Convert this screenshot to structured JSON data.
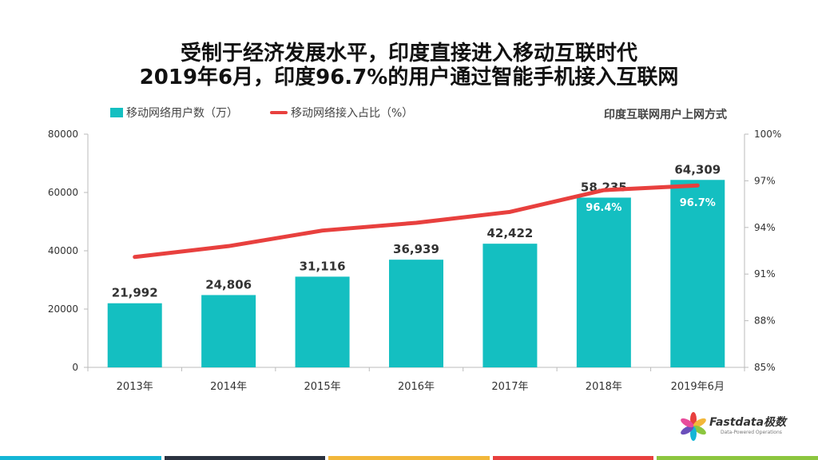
{
  "title_line1": "受制于经济发展水平，印度直接进入移动互联时代",
  "title_line2": "2019年6月，印度96.7%的用户通过智能手机接入互联网",
  "subtitle": "印度互联网用户上网方式",
  "legend": {
    "bar_label": "移动网络用户数（万）",
    "line_label": "移动网络接入占比（%）"
  },
  "logo": {
    "name": "Fastdata极数",
    "tagline": "Data-Powered Operations"
  },
  "colors": {
    "bar": "#14bfc1",
    "line": "#e8403e",
    "stripes": [
      "#14b6d6",
      "#2b3240",
      "#f2b73a",
      "#e8403e",
      "#8cc63f"
    ]
  },
  "chart_data": {
    "type": "bar",
    "categories": [
      "2013年",
      "2014年",
      "2015年",
      "2016年",
      "2017年",
      "2018年",
      "2019年6月"
    ],
    "series": [
      {
        "name": "移动网络用户数（万）",
        "type": "bar",
        "axis": "left",
        "values": [
          21992,
          24806,
          31116,
          36939,
          42422,
          58235,
          64309
        ],
        "labels": [
          "21,992",
          "24,806",
          "31,116",
          "36,939",
          "42,422",
          "58,235",
          "64,309"
        ]
      },
      {
        "name": "移动网络接入占比（%）",
        "type": "line",
        "axis": "right",
        "values": [
          92.1,
          92.8,
          93.8,
          94.3,
          95.0,
          96.4,
          96.7
        ],
        "labels": [
          "",
          "",
          "",
          "",
          "",
          "96.4%",
          "96.7%"
        ]
      }
    ],
    "y_left": {
      "min": 0,
      "max": 80000,
      "ticks": [
        0,
        20000,
        40000,
        60000,
        80000
      ],
      "tick_labels": [
        "0",
        "20000",
        "40000",
        "60000",
        "80000"
      ]
    },
    "y_right": {
      "min": 85,
      "max": 100,
      "ticks": [
        85,
        88,
        91,
        94,
        97,
        100
      ],
      "tick_labels": [
        "85%",
        "88%",
        "91%",
        "94%",
        "97%",
        "100%"
      ]
    },
    "grid": false,
    "legend_position": "top-left"
  }
}
